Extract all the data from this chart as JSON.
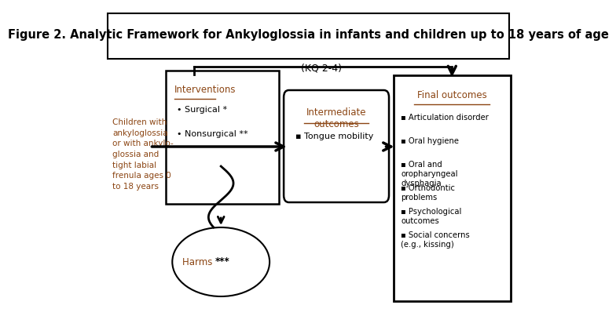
{
  "title": "Figure 2. Analytic Framework for Ankyloglossia in infants and children up to 18 years of age",
  "title_fontsize": 10.5,
  "bg_color": "#ffffff",
  "border_color": "#000000",
  "kq_label": "(KQ 2-4)",
  "left_text_lines": [
    "Children with",
    "ankyloglossia",
    "or with ankylo-",
    "glossia and",
    "tight labial",
    "frenula ages 0",
    "to 18 years"
  ],
  "left_text_color": "#8B4513",
  "interventions_title": "Interventions",
  "interventions_items": [
    "Surgical *",
    "Nonsurgical **"
  ],
  "intermediate_title": "Intermediate\noutcomes",
  "intermediate_items": [
    "Tongue mobility"
  ],
  "final_title": "Final outcomes",
  "final_items": [
    "Articulation disorder",
    "Oral hygiene",
    "Oral and\noropharyngeal\ndysphagia",
    "Orthodontic\nproblems",
    "Psychological\noutcomes",
    "Social concerns\n(e.g., kissing)"
  ],
  "harms_label_normal": "Harms ",
  "harms_label_bold": "***",
  "harms_color": "#8B4513",
  "accent_color": "#8B4513",
  "box_color": "#000000",
  "arrow_color": "#000000"
}
